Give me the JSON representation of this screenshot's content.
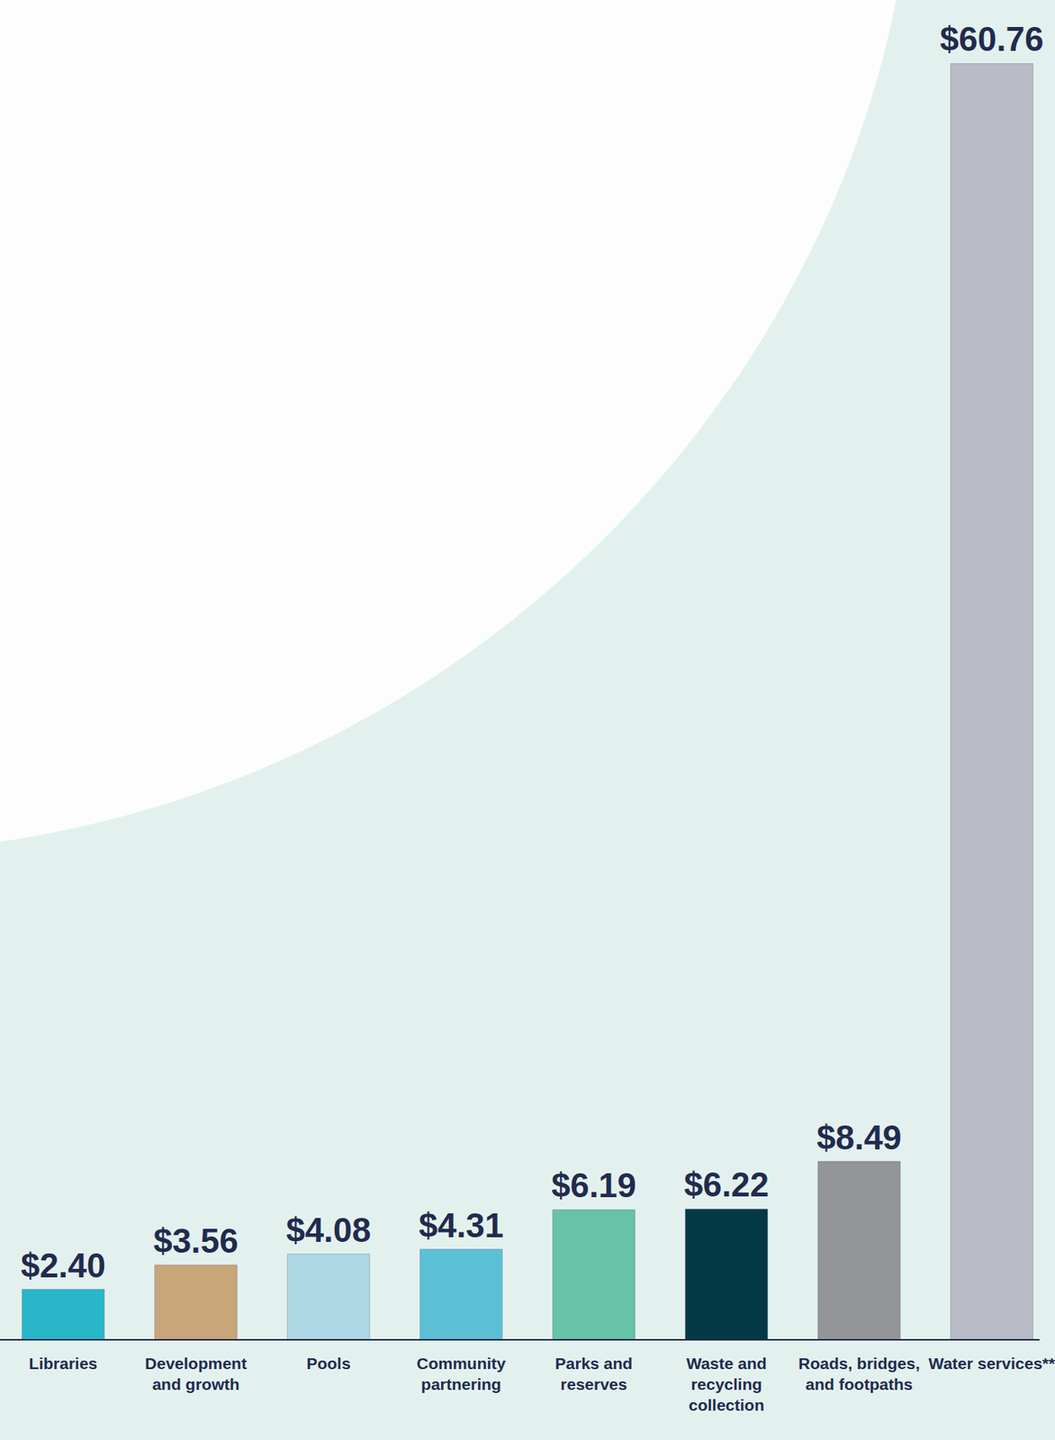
{
  "chart_data": {
    "type": "bar",
    "categories": [
      "Libraries",
      "Development and growth",
      "Pools",
      "Community partnering",
      "Parks and reserves",
      "Waste and recycling collection",
      "Roads, bridges, and footpaths",
      "Water services**"
    ],
    "values": [
      2.4,
      3.56,
      4.08,
      4.31,
      6.19,
      6.22,
      8.49,
      60.76
    ],
    "value_labels": [
      "$2.40",
      "$3.56",
      "$4.08",
      "$4.31",
      "$6.19",
      "$6.22",
      "$8.49",
      "$60.76"
    ],
    "colors": [
      "#29b6c8",
      "#c8a67a",
      "#add8e6",
      "#5bc0d6",
      "#66c3a5",
      "#033845",
      "#939598",
      "#b9bbc6"
    ],
    "data_labels": true,
    "tick_labels": false
  }
}
